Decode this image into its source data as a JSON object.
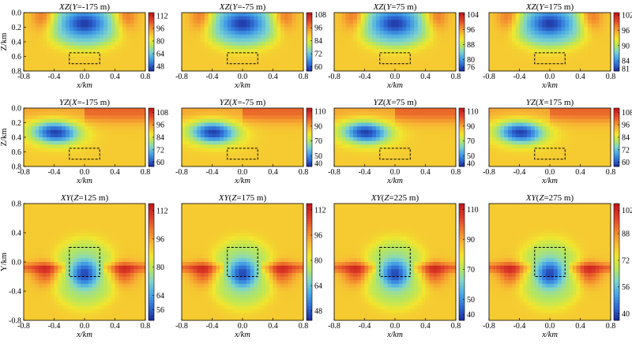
{
  "figure": {
    "colormap": [
      "#1f2f9e",
      "#2f6fd6",
      "#4aa8e6",
      "#7fd6c8",
      "#b9e65a",
      "#f2e62e",
      "#f7b733",
      "#f07d2c",
      "#e0402a",
      "#c41a1a"
    ],
    "box_color": "#000000"
  },
  "chart_data": [
    {
      "type": "heatmap",
      "row": 0,
      "col": 0,
      "title_italic": "XZ",
      "title_var": "Y",
      "title_value": "=-175 m",
      "xlabel": "x/km",
      "ylabel": "Z/km",
      "xlim": [
        -0.8,
        0.8
      ],
      "ylim": [
        0.8,
        0.0
      ],
      "xticks": [
        "-0.8",
        "-0.4",
        "0.0",
        "0.4",
        "0.8"
      ],
      "yticks": [
        "0.0",
        "0.2",
        "0.4",
        "0.6",
        "0.8"
      ],
      "colorbar": {
        "min": 42,
        "max": 116,
        "ticks": [
          "48",
          "64",
          "80",
          "96",
          "112"
        ]
      },
      "anomaly_center": [
        0.0,
        0.17
      ],
      "box": {
        "x": [
          -0.2,
          0.2
        ],
        "z": [
          0.1,
          0.25
        ]
      }
    },
    {
      "type": "heatmap",
      "row": 0,
      "col": 1,
      "title_italic": "XZ",
      "title_var": "Y",
      "title_value": "=-75 m",
      "xlabel": "x/km",
      "ylabel": "",
      "xlim": [
        -0.8,
        0.8
      ],
      "ylim": [
        0.8,
        0.0
      ],
      "xticks": [
        "-0.8",
        "-0.4",
        "0.0",
        "0.4",
        "0.8"
      ],
      "yticks": [],
      "colorbar": {
        "min": 56,
        "max": 110,
        "ticks": [
          "60",
          "72",
          "84",
          "96",
          "108"
        ]
      },
      "anomaly_center": [
        0.0,
        0.17
      ],
      "box": {
        "x": [
          -0.2,
          0.2
        ],
        "z": [
          0.1,
          0.25
        ]
      }
    },
    {
      "type": "heatmap",
      "row": 0,
      "col": 2,
      "title_italic": "XZ",
      "title_var": "Y",
      "title_value": "=75 m",
      "xlabel": "x/km",
      "ylabel": "",
      "xlim": [
        -0.8,
        0.8
      ],
      "ylim": [
        0.8,
        0.0
      ],
      "xticks": [
        "-0.8",
        "-0.4",
        "0.0",
        "0.4",
        "0.8"
      ],
      "yticks": [],
      "colorbar": {
        "min": 74,
        "max": 105,
        "ticks": [
          "76",
          "80",
          "88",
          "96",
          "104"
        ]
      },
      "anomaly_center": [
        0.0,
        0.17
      ],
      "box": {
        "x": [
          -0.2,
          0.2
        ],
        "z": [
          0.1,
          0.25
        ]
      }
    },
    {
      "type": "heatmap",
      "row": 0,
      "col": 3,
      "title_italic": "XZ",
      "title_var": "Y",
      "title_value": "=175 m",
      "xlabel": "x/km",
      "ylabel": "",
      "xlim": [
        -0.8,
        0.8
      ],
      "ylim": [
        0.8,
        0.0
      ],
      "xticks": [
        "-0.8",
        "-0.4",
        "0.0",
        "0.4",
        "0.8"
      ],
      "yticks": [],
      "colorbar": {
        "min": 80,
        "max": 103,
        "ticks": [
          "81",
          "84",
          "90",
          "96",
          "102"
        ]
      },
      "anomaly_center": [
        0.0,
        0.17
      ],
      "box": {
        "x": [
          -0.2,
          0.2
        ],
        "z": [
          0.1,
          0.25
        ]
      }
    },
    {
      "type": "heatmap",
      "row": 1,
      "col": 0,
      "title_italic": "YZ",
      "title_var": "X",
      "title_value": "=-175 m",
      "xlabel": "x/km",
      "ylabel": "Z/km",
      "xlim": [
        -0.8,
        0.8
      ],
      "ylim": [
        0.8,
        0.0
      ],
      "xticks": [
        "-0.8",
        "-0.4",
        "0.0",
        "0.4",
        "0.8"
      ],
      "yticks": [
        "0.0",
        "0.2",
        "0.4",
        "0.6",
        "0.8"
      ],
      "colorbar": {
        "min": 56,
        "max": 112,
        "ticks": [
          "60",
          "72",
          "84",
          "96",
          "108"
        ]
      },
      "anomaly_center": [
        -0.35,
        0.3
      ],
      "box": {
        "x": [
          -0.2,
          0.2
        ],
        "z": [
          0.1,
          0.25
        ]
      }
    },
    {
      "type": "heatmap",
      "row": 1,
      "col": 1,
      "title_italic": "YZ",
      "title_var": "X",
      "title_value": "=-75 m",
      "xlabel": "x/km",
      "ylabel": "",
      "xlim": [
        -0.8,
        0.8
      ],
      "ylim": [
        0.8,
        0.0
      ],
      "xticks": [
        "-0.8",
        "-0.4",
        "0.0",
        "0.4",
        "0.8"
      ],
      "yticks": [],
      "colorbar": {
        "min": 36,
        "max": 114,
        "ticks": [
          "40",
          "50",
          "70",
          "90",
          "110"
        ]
      },
      "anomaly_center": [
        -0.35,
        0.3
      ],
      "box": {
        "x": [
          -0.2,
          0.2
        ],
        "z": [
          0.1,
          0.25
        ]
      }
    },
    {
      "type": "heatmap",
      "row": 1,
      "col": 2,
      "title_italic": "YZ",
      "title_var": "X",
      "title_value": "=75 m",
      "xlabel": "x/km",
      "ylabel": "",
      "xlim": [
        -0.8,
        0.8
      ],
      "ylim": [
        0.8,
        0.0
      ],
      "xticks": [
        "-0.8",
        "-0.4",
        "0.0",
        "0.4",
        "0.8"
      ],
      "yticks": [],
      "colorbar": {
        "min": 36,
        "max": 114,
        "ticks": [
          "40",
          "50",
          "70",
          "90",
          "110"
        ]
      },
      "anomaly_center": [
        -0.35,
        0.3
      ],
      "box": {
        "x": [
          -0.2,
          0.2
        ],
        "z": [
          0.1,
          0.25
        ]
      }
    },
    {
      "type": "heatmap",
      "row": 1,
      "col": 3,
      "title_italic": "YZ",
      "title_var": "X",
      "title_value": "=175 m",
      "xlabel": "x/km",
      "ylabel": "",
      "xlim": [
        -0.8,
        0.8
      ],
      "ylim": [
        0.8,
        0.0
      ],
      "xticks": [
        "-0.8",
        "-0.4",
        "0.0",
        "0.4",
        "0.8"
      ],
      "yticks": [],
      "colorbar": {
        "min": 56,
        "max": 112,
        "ticks": [
          "60",
          "72",
          "84",
          "96",
          "108"
        ]
      },
      "anomaly_center": [
        -0.35,
        0.3
      ],
      "box": {
        "x": [
          -0.2,
          0.2
        ],
        "z": [
          0.1,
          0.25
        ]
      }
    },
    {
      "type": "heatmap",
      "row": 2,
      "col": 0,
      "title_italic": "XY",
      "title_var": "Z",
      "title_value": "=125 m",
      "xlabel": "x/km",
      "ylabel": "Y/km",
      "xlim": [
        -0.8,
        0.8
      ],
      "ylim": [
        -0.8,
        0.8
      ],
      "xticks": [
        "-0.8",
        "-0.4",
        "0.0",
        "0.4",
        "0.8"
      ],
      "yticks": [
        "-0.8",
        "-0.4",
        "0.0",
        "0.4",
        "0.8"
      ],
      "colorbar": {
        "min": 50,
        "max": 116,
        "ticks": [
          "56",
          "64",
          "80",
          "96",
          "112"
        ]
      },
      "anomaly_center": [
        0.0,
        -0.18
      ],
      "box": {
        "x": [
          -0.2,
          0.2
        ],
        "y": [
          -0.2,
          0.2
        ]
      }
    },
    {
      "type": "heatmap",
      "row": 2,
      "col": 1,
      "title_italic": "XY",
      "title_var": "Z",
      "title_value": "=175 m",
      "xlabel": "x/km",
      "ylabel": "",
      "xlim": [
        -0.8,
        0.8
      ],
      "ylim": [
        -0.8,
        0.8
      ],
      "xticks": [
        "-0.8",
        "-0.4",
        "0.0",
        "0.4",
        "0.8"
      ],
      "yticks": [],
      "colorbar": {
        "min": 42,
        "max": 116,
        "ticks": [
          "48",
          "64",
          "80",
          "96",
          "112"
        ]
      },
      "anomaly_center": [
        0.0,
        -0.18
      ],
      "box": {
        "x": [
          -0.2,
          0.2
        ],
        "y": [
          -0.2,
          0.2
        ]
      }
    },
    {
      "type": "heatmap",
      "row": 2,
      "col": 2,
      "title_italic": "XY",
      "title_var": "Z",
      "title_value": "=225 m",
      "xlabel": "x/km",
      "ylabel": "",
      "xlim": [
        -0.8,
        0.8
      ],
      "ylim": [
        -0.8,
        0.8
      ],
      "xticks": [
        "-0.8",
        "-0.4",
        "0.0",
        "0.4",
        "0.8"
      ],
      "yticks": [],
      "colorbar": {
        "min": 36,
        "max": 114,
        "ticks": [
          "40",
          "50",
          "70",
          "90",
          "110"
        ]
      },
      "anomaly_center": [
        0.0,
        -0.18
      ],
      "box": {
        "x": [
          -0.2,
          0.2
        ],
        "y": [
          -0.2,
          0.2
        ]
      }
    },
    {
      "type": "heatmap",
      "row": 2,
      "col": 3,
      "title_italic": "XY",
      "title_var": "Z",
      "title_value": "=275 m",
      "xlabel": "x/km",
      "ylabel": "",
      "xlim": [
        -0.8,
        0.8
      ],
      "ylim": [
        -0.8,
        0.8
      ],
      "xticks": [
        "-0.8",
        "-0.4",
        "0.0",
        "0.4",
        "0.8"
      ],
      "yticks": [],
      "colorbar": {
        "min": 36,
        "max": 106,
        "ticks": [
          "40",
          "56",
          "72",
          "88",
          "102"
        ]
      },
      "anomaly_center": [
        0.0,
        -0.18
      ],
      "box": {
        "x": [
          -0.2,
          0.2
        ],
        "y": [
          -0.2,
          0.2
        ]
      }
    }
  ]
}
